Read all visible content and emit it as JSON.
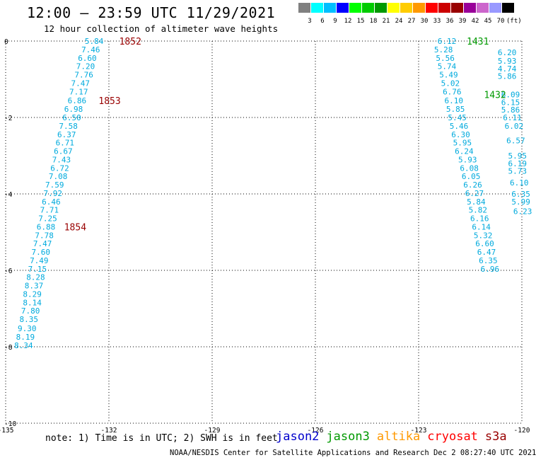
{
  "title": "12:00 – 23:59 UTC 11/29/2021",
  "subtitle": "12 hour collection of altimeter wave heights",
  "legend": {
    "colors": [
      "#808080",
      "#00ffff",
      "#00bfff",
      "#0000ff",
      "#00ff00",
      "#00cc00",
      "#009900",
      "#ffff00",
      "#ffcc00",
      "#ff9900",
      "#ff0000",
      "#cc0000",
      "#990000",
      "#990099",
      "#cc66cc",
      "#9999ff",
      "#000000"
    ],
    "labels": [
      "3",
      "6",
      "9",
      "12",
      "15",
      "18",
      "21",
      "24",
      "27",
      "30",
      "33",
      "36",
      "39",
      "42",
      "45",
      "70",
      "(ft)"
    ]
  },
  "axes": {
    "x_ticks": [
      "-135",
      "-132",
      "-129",
      "-126",
      "-123",
      "-120"
    ],
    "y_ticks": [
      "0",
      "-2",
      "-4",
      "-6",
      "-8",
      "-10"
    ]
  },
  "note": "note: 1) Time is in UTC; 2) SWH is in feet",
  "satellites": [
    {
      "name": "jason2",
      "color": "#0000cc"
    },
    {
      "name": "jason3",
      "color": "#009900"
    },
    {
      "name": "altika",
      "color": "#ff9900"
    },
    {
      "name": "cryosat",
      "color": "#ff0000"
    },
    {
      "name": "s3a",
      "color": "#990000"
    }
  ],
  "footer": "NOAA/NESDIS Center for Satellite Applications and Research    Dec  2 08:27:40 UTC 2021",
  "chart_data": {
    "type": "scatter",
    "xlim": [
      -135,
      -120
    ],
    "ylim": [
      -10,
      0
    ],
    "grid": true,
    "text_color": "#00aadd",
    "track1": [
      {
        "x": -132.7,
        "y": 0.0,
        "v": "5.84"
      },
      {
        "x": -132.8,
        "y": -0.22,
        "v": "7.46"
      },
      {
        "x": -132.9,
        "y": -0.44,
        "v": "6.60"
      },
      {
        "x": -132.95,
        "y": -0.66,
        "v": "7.20"
      },
      {
        "x": -133.0,
        "y": -0.88,
        "v": "7.76"
      },
      {
        "x": -133.1,
        "y": -1.1,
        "v": "7.47"
      },
      {
        "x": -133.15,
        "y": -1.32,
        "v": "7.17"
      },
      {
        "x": -133.2,
        "y": -1.56,
        "v": "6.86"
      },
      {
        "x": -133.3,
        "y": -1.78,
        "v": "6.98"
      },
      {
        "x": -133.35,
        "y": -2.0,
        "v": "6.50"
      },
      {
        "x": -133.45,
        "y": -2.22,
        "v": "7.58"
      },
      {
        "x": -133.5,
        "y": -2.44,
        "v": "6.37"
      },
      {
        "x": -133.55,
        "y": -2.66,
        "v": "6.71"
      },
      {
        "x": -133.6,
        "y": -2.88,
        "v": "6.67"
      },
      {
        "x": -133.65,
        "y": -3.1,
        "v": "7.43"
      },
      {
        "x": -133.7,
        "y": -3.32,
        "v": "6.72"
      },
      {
        "x": -133.75,
        "y": -3.54,
        "v": "7.08"
      },
      {
        "x": -133.85,
        "y": -3.76,
        "v": "7.59"
      },
      {
        "x": -133.9,
        "y": -3.98,
        "v": "7.92"
      },
      {
        "x": -133.95,
        "y": -4.2,
        "v": "6.46"
      },
      {
        "x": -134.0,
        "y": -4.42,
        "v": "7.71"
      },
      {
        "x": -134.05,
        "y": -4.64,
        "v": "7.25"
      },
      {
        "x": -134.1,
        "y": -4.86,
        "v": "6.88"
      },
      {
        "x": -134.15,
        "y": -5.08,
        "v": "7.78"
      },
      {
        "x": -134.2,
        "y": -5.3,
        "v": "7.47"
      },
      {
        "x": -134.25,
        "y": -5.52,
        "v": "7.60"
      },
      {
        "x": -134.3,
        "y": -5.74,
        "v": "7.49"
      },
      {
        "x": -134.35,
        "y": -5.96,
        "v": "7.15"
      },
      {
        "x": -134.4,
        "y": -6.18,
        "v": "8.28"
      },
      {
        "x": -134.45,
        "y": -6.4,
        "v": "8.37"
      },
      {
        "x": -134.5,
        "y": -6.62,
        "v": "8.29"
      },
      {
        "x": -134.5,
        "y": -6.84,
        "v": "8.14"
      },
      {
        "x": -134.55,
        "y": -7.06,
        "v": "7.80"
      },
      {
        "x": -134.6,
        "y": -7.28,
        "v": "8.35"
      },
      {
        "x": -134.65,
        "y": -7.52,
        "v": "9.30"
      },
      {
        "x": -134.7,
        "y": -7.74,
        "v": "8.19"
      },
      {
        "x": -134.75,
        "y": -7.96,
        "v": "8.34"
      }
    ],
    "track2": [
      {
        "x": -122.45,
        "y": 0.0,
        "v": "6.12"
      },
      {
        "x": -122.55,
        "y": -0.22,
        "v": "5.28"
      },
      {
        "x": -122.5,
        "y": -0.44,
        "v": "5.56"
      },
      {
        "x": -122.45,
        "y": -0.66,
        "v": "5.74"
      },
      {
        "x": -122.4,
        "y": -0.88,
        "v": "5.49"
      },
      {
        "x": -122.35,
        "y": -1.1,
        "v": "5.02"
      },
      {
        "x": -122.3,
        "y": -1.32,
        "v": "6.76"
      },
      {
        "x": -122.25,
        "y": -1.56,
        "v": "6.10"
      },
      {
        "x": -122.2,
        "y": -1.78,
        "v": "5.85"
      },
      {
        "x": -122.15,
        "y": -2.0,
        "v": "5.45"
      },
      {
        "x": -122.1,
        "y": -2.22,
        "v": "5.46"
      },
      {
        "x": -122.05,
        "y": -2.44,
        "v": "6.30"
      },
      {
        "x": -122.0,
        "y": -2.66,
        "v": "5.95"
      },
      {
        "x": -121.95,
        "y": -2.88,
        "v": "6.24"
      },
      {
        "x": -121.85,
        "y": -3.1,
        "v": "5.93"
      },
      {
        "x": -121.8,
        "y": -3.32,
        "v": "6.08"
      },
      {
        "x": -121.75,
        "y": -3.54,
        "v": "6.05"
      },
      {
        "x": -121.7,
        "y": -3.76,
        "v": "6.26"
      },
      {
        "x": -121.65,
        "y": -3.98,
        "v": "6.27"
      },
      {
        "x": -121.6,
        "y": -4.2,
        "v": "5.84"
      },
      {
        "x": -121.55,
        "y": -4.42,
        "v": "5.82"
      },
      {
        "x": -121.5,
        "y": -4.64,
        "v": "6.16"
      },
      {
        "x": -121.45,
        "y": -4.86,
        "v": "6.14"
      },
      {
        "x": -121.4,
        "y": -5.08,
        "v": "5.32"
      },
      {
        "x": -121.35,
        "y": -5.3,
        "v": "6.60"
      },
      {
        "x": -121.3,
        "y": -5.52,
        "v": "6.47"
      },
      {
        "x": -121.25,
        "y": -5.74,
        "v": "6.35"
      },
      {
        "x": -121.2,
        "y": -5.96,
        "v": "6.96"
      }
    ],
    "track3": [
      {
        "x": -120.7,
        "y": -0.3,
        "v": "6.20"
      },
      {
        "x": -120.7,
        "y": -0.52,
        "v": "5.93"
      },
      {
        "x": -120.7,
        "y": -0.72,
        "v": "4.74"
      },
      {
        "x": -120.7,
        "y": -0.92,
        "v": "5.86"
      },
      {
        "x": -120.6,
        "y": -1.4,
        "v": "6.09"
      },
      {
        "x": -120.6,
        "y": -1.6,
        "v": "6.15"
      },
      {
        "x": -120.6,
        "y": -1.8,
        "v": "5.86"
      },
      {
        "x": -120.55,
        "y": -2.0,
        "v": "6.11"
      },
      {
        "x": -120.5,
        "y": -2.22,
        "v": "6.02"
      },
      {
        "x": -120.45,
        "y": -2.6,
        "v": "6.57"
      },
      {
        "x": -120.4,
        "y": -3.0,
        "v": "5.95"
      },
      {
        "x": -120.4,
        "y": -3.2,
        "v": "6.19"
      },
      {
        "x": -120.4,
        "y": -3.4,
        "v": "5.73"
      },
      {
        "x": -120.35,
        "y": -3.7,
        "v": "6.10"
      },
      {
        "x": -120.3,
        "y": -4.0,
        "v": "6.35"
      },
      {
        "x": -120.3,
        "y": -4.2,
        "v": "5.99"
      },
      {
        "x": -120.25,
        "y": -4.45,
        "v": "6.23"
      }
    ],
    "time_labels": [
      {
        "x": -131.7,
        "y": 0.0,
        "v": "1852",
        "color": "#990000"
      },
      {
        "x": -132.3,
        "y": -1.56,
        "v": "1853",
        "color": "#990000"
      },
      {
        "x": -133.3,
        "y": -4.86,
        "v": "1854",
        "color": "#990000"
      },
      {
        "x": -121.6,
        "y": 0.0,
        "v": "1431",
        "color": "#009900"
      },
      {
        "x": -121.1,
        "y": -1.4,
        "v": "1432",
        "color": "#009900"
      }
    ]
  }
}
